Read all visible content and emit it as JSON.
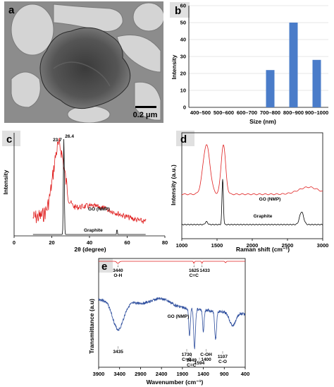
{
  "panels": {
    "a": {
      "letter": "a",
      "scale_label": "0.2 μm"
    },
    "b": {
      "letter": "b"
    },
    "c": {
      "letter": "c"
    },
    "d": {
      "letter": "d"
    },
    "e": {
      "letter": "e"
    }
  },
  "chart_data": [
    {
      "id": "b",
      "type": "bar",
      "categories": [
        "400–500",
        "500–600",
        "600–700",
        "700–800",
        "800–900",
        "900–1000"
      ],
      "values": [
        0,
        0,
        0,
        22,
        50,
        28
      ],
      "xlabel": "Size (nm)",
      "ylabel": "Intensity",
      "ylim": [
        0,
        60
      ],
      "yticks": [
        "0",
        "10",
        "20",
        "30",
        "40",
        "50",
        "60"
      ],
      "bar_color": "#4a7cc9"
    },
    {
      "id": "c",
      "type": "line",
      "xlabel": "2θ (degree)",
      "ylabel": "Intensity",
      "xlim": [
        0,
        80
      ],
      "xticks": [
        "0",
        "20",
        "40",
        "60",
        "80"
      ],
      "series": [
        {
          "name": "GO (NMP)",
          "color": "#e02020",
          "peak_x": 23.7,
          "peak_label": "23.7"
        },
        {
          "name": "Graphite",
          "color": "#000000",
          "peak_x": 26.4,
          "peak_label": "26.4"
        }
      ]
    },
    {
      "id": "d",
      "type": "line",
      "xlabel": "Raman shift (cm⁻¹)",
      "ylabel": "Intensity (a.u.)",
      "xlim": [
        1000,
        3000
      ],
      "xticks": [
        "1000",
        "1500",
        "2000",
        "2500",
        "3000"
      ],
      "series": [
        {
          "name": "GO (NMP)",
          "color": "#e02020",
          "peaks": [
            1350,
            1590
          ]
        },
        {
          "name": "Graphite",
          "color": "#000000",
          "peaks": [
            1580,
            2700
          ]
        }
      ]
    },
    {
      "id": "e",
      "type": "line",
      "xlabel": "Wavenumber (cm⁻¹)",
      "ylabel": "Transmittance (a.u)",
      "xlim": [
        3900,
        400
      ],
      "xticks": [
        "3900",
        "3400",
        "2900",
        "2400",
        "1900",
        "1400",
        "900",
        "400"
      ],
      "series": [
        {
          "name": "GO (NMP)",
          "color": "#2f4f9e"
        },
        {
          "name": "",
          "color": "#e02020"
        }
      ],
      "annotations_top": [
        {
          "x": 3440,
          "lines": [
            "3440",
            "O-H"
          ]
        },
        {
          "x": 1625,
          "lines": [
            "1625",
            "C=C"
          ]
        },
        {
          "x": 1433,
          "lines": [
            "1433"
          ]
        }
      ],
      "annotations_bottom": [
        {
          "x": 3435,
          "lines": [
            "3435"
          ]
        },
        {
          "x": 1730,
          "lines": [
            "1730",
            "C=O"
          ]
        },
        {
          "x": 1649,
          "lines": [
            "1649",
            "C=C"
          ]
        },
        {
          "x": 1594,
          "lines": [
            "1594"
          ]
        },
        {
          "x": 1400,
          "lines": [
            "C-OH",
            "1400"
          ]
        },
        {
          "x": 1107,
          "lines": [
            "1107",
            "C-O"
          ]
        }
      ]
    }
  ]
}
